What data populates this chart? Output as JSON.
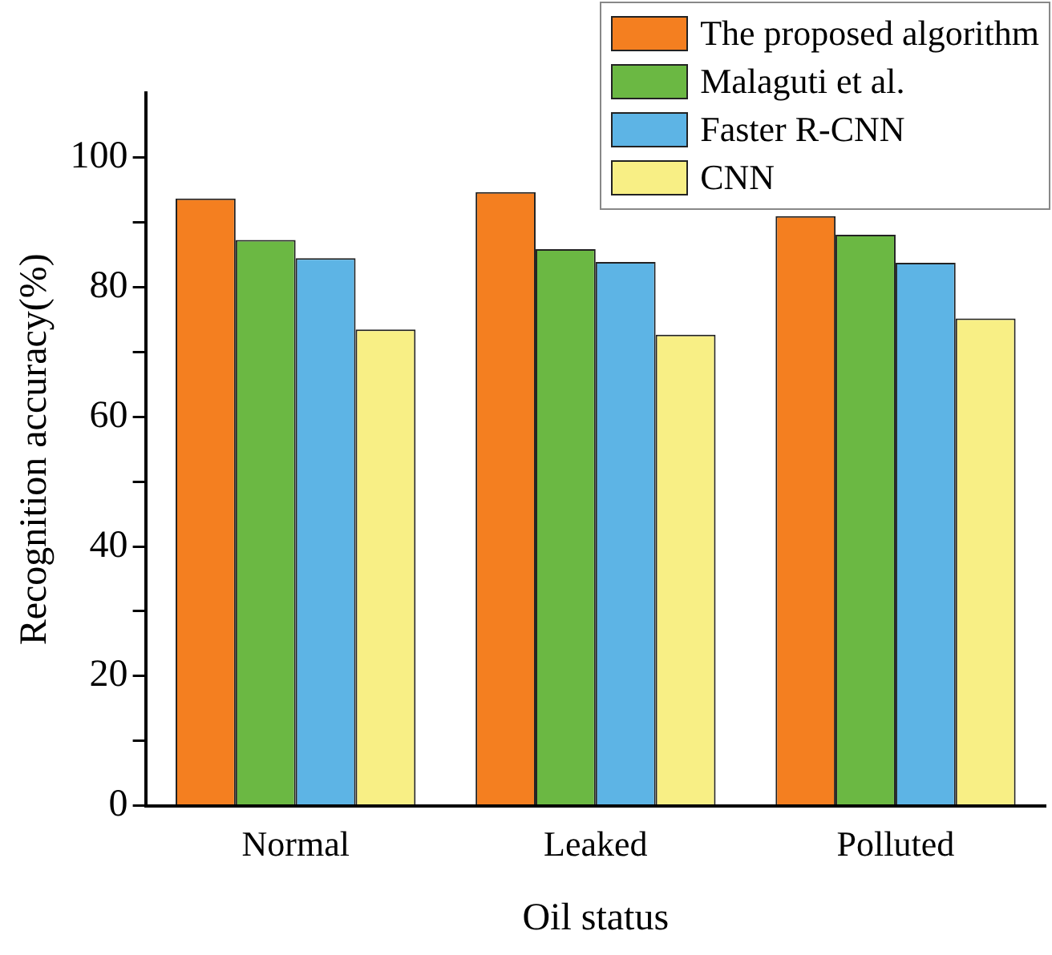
{
  "chart_data": {
    "type": "bar",
    "xlabel": "Oil status",
    "ylabel": "Recognition accuracy(%)",
    "categories": [
      "Normal",
      "Leaked",
      "Polluted"
    ],
    "series": [
      {
        "name": "The proposed algorithm",
        "color": "#f47f20",
        "values": [
          93.7,
          94.7,
          91.0
        ]
      },
      {
        "name": "Malaguti et al.",
        "color": "#6bb843",
        "values": [
          87.3,
          85.9,
          88.1
        ]
      },
      {
        "name": "Faster R-CNN",
        "color": "#5db4e5",
        "values": [
          84.5,
          83.9,
          83.8
        ]
      },
      {
        "name": "CNN",
        "color": "#f8ef85",
        "values": [
          73.5,
          72.7,
          75.2
        ]
      }
    ],
    "ylim": [
      0,
      110
    ],
    "yticks": [
      0,
      {
        "value": 10,
        "label": null
      },
      20,
      {
        "value": 30,
        "label": null
      },
      40,
      {
        "value": 50,
        "label": null
      },
      60,
      {
        "value": 70,
        "label": null
      },
      80,
      {
        "value": 90,
        "label": null
      },
      100
    ],
    "grid": false,
    "legend": "top right"
  }
}
